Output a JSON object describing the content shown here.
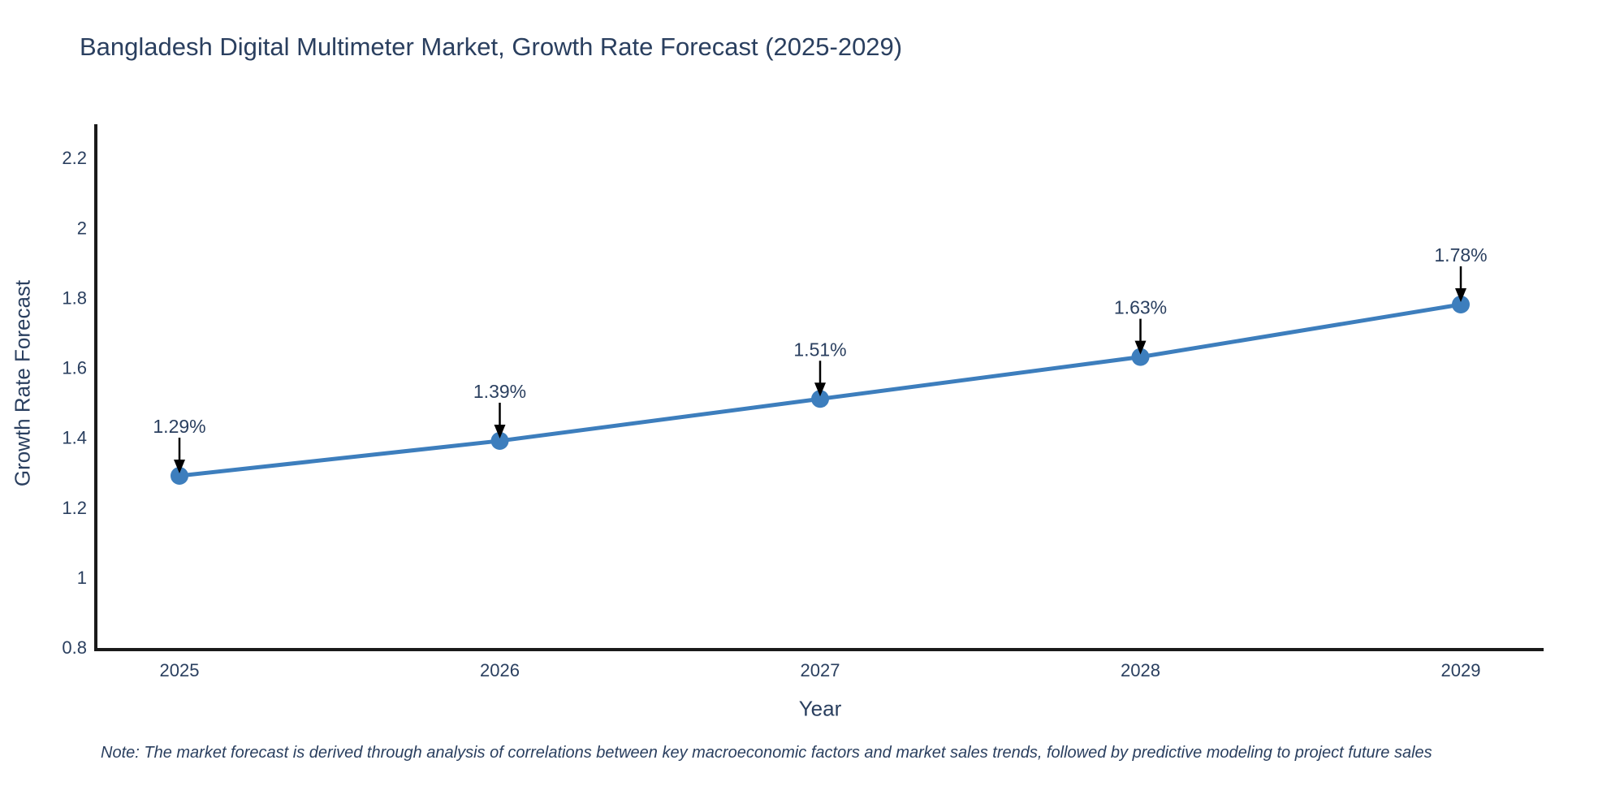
{
  "note": "Note: The market forecast is derived through analysis of correlations between key macroeconomic factors and market sales trends, followed by predictive modeling to project future sales",
  "chart_data": {
    "type": "line",
    "title": "Bangladesh Digital Multimeter Market, Growth Rate Forecast (2025-2029)",
    "xlabel": "Year",
    "ylabel": "Growth Rate Forecast",
    "x": [
      "2025",
      "2026",
      "2027",
      "2028",
      "2029"
    ],
    "y": [
      1.29,
      1.39,
      1.51,
      1.63,
      1.78
    ],
    "point_labels": [
      "1.29%",
      "1.39%",
      "1.51%",
      "1.63%",
      "1.78%"
    ],
    "yticks": [
      0.8,
      1,
      1.2,
      1.4,
      1.6,
      1.8,
      2,
      2.2
    ],
    "ylim": [
      0.76,
      2.3
    ],
    "grid": false,
    "legend": false,
    "annotation_style": "black downward arrow from value label to marker",
    "colors": {
      "line": "#3d7ebd",
      "marker": "#3d7ebd",
      "axis": "#1a1a1a",
      "text": "#2a3f5f",
      "arrow": "#000000",
      "background": "#ffffff"
    }
  }
}
